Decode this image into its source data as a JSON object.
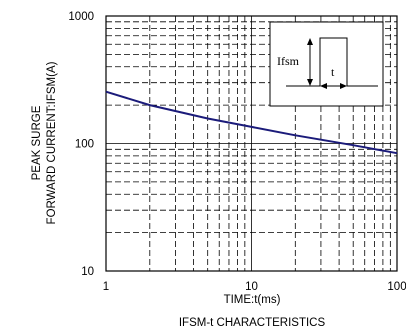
{
  "chart_data": {
    "type": "line",
    "title": "IFSM-t CHARACTERISTICS",
    "xlabel": "TIME:t(ms)",
    "ylabel_line1": "PEAK SURGE",
    "ylabel_line2": "FORWARD CURRENT:IFSM(A)",
    "xscale": "log",
    "yscale": "log",
    "xlim": [
      1,
      100
    ],
    "ylim": [
      10,
      1000
    ],
    "x_ticks": [
      "1",
      "10",
      "100"
    ],
    "y_ticks": [
      "10",
      "100",
      "1000"
    ],
    "grid": "dashed minor, solid major",
    "series": [
      {
        "color": "#1b1b7a",
        "x": [
          1,
          2,
          5,
          10,
          20,
          50,
          100
        ],
        "y": [
          255,
          200,
          157,
          135,
          116,
          97,
          84
        ]
      }
    ],
    "inset": {
      "label_current": "Ifsm",
      "label_time": "t"
    }
  }
}
